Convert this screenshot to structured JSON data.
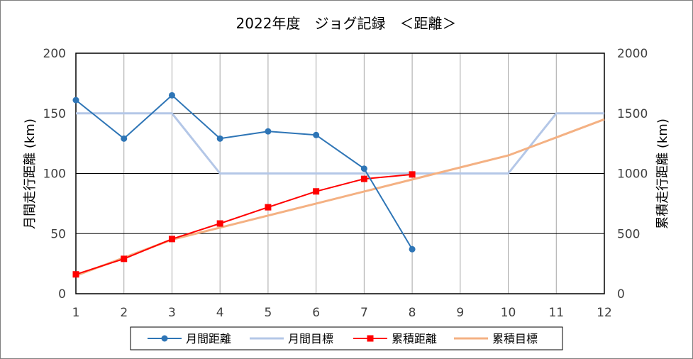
{
  "chart_data": {
    "type": "line",
    "title": "2022年度　ジョグ記録　＜距離＞",
    "ylabel": "月間走行距離 (km)",
    "y2label": "累積走行距離 (km)",
    "xlabel": "",
    "categories": [
      "1",
      "2",
      "3",
      "4",
      "5",
      "6",
      "7",
      "8",
      "9",
      "10",
      "11",
      "12"
    ],
    "ylim": [
      0,
      200
    ],
    "y_ticks": [
      "0",
      "50",
      "100",
      "150",
      "200"
    ],
    "y2lim": [
      0,
      2000
    ],
    "y2_ticks": [
      "0",
      "500",
      "1000",
      "1500",
      "2000"
    ],
    "grid": true,
    "legend_position": "bottom",
    "series": [
      {
        "name": "月間距離",
        "axis": "left",
        "color": "#2e75b6",
        "marker": "circle",
        "values": [
          161,
          129,
          165,
          129,
          135,
          132,
          104,
          37,
          null,
          null,
          null,
          null
        ]
      },
      {
        "name": "月間目標",
        "axis": "left",
        "color": "#b4c7e7",
        "marker": "none",
        "values": [
          150,
          150,
          150,
          100,
          100,
          100,
          100,
          100,
          100,
          100,
          150,
          150
        ]
      },
      {
        "name": "累積距離",
        "axis": "right",
        "color": "#ff0000",
        "marker": "square",
        "values": [
          161,
          290,
          455,
          584,
          719,
          851,
          955,
          992,
          null,
          null,
          null,
          null
        ]
      },
      {
        "name": "累積目標",
        "axis": "right",
        "color": "#f4b183",
        "marker": "none",
        "values": [
          150,
          300,
          450,
          550,
          650,
          750,
          850,
          950,
          1050,
          1150,
          1300,
          1450
        ]
      }
    ]
  }
}
